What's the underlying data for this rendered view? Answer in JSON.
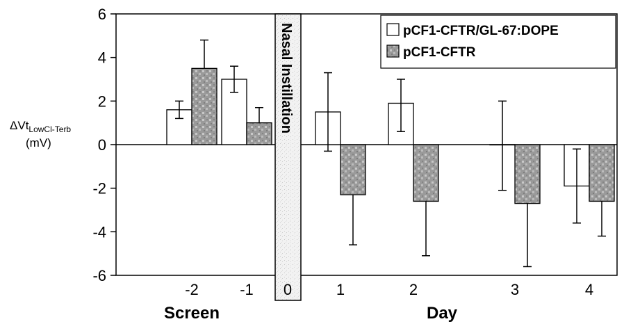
{
  "chart_data": {
    "type": "bar",
    "ylabel_main": "ΔVt",
    "ylabel_sub": "LowCl-Terb",
    "ylabel_unit": "(mV)",
    "ylim": [
      -6,
      6
    ],
    "yticks": [
      "6",
      "4",
      "2",
      "0",
      "-2",
      "-4",
      "-6"
    ],
    "categories": [
      "-2",
      "-1",
      "0",
      "1",
      "2",
      "3",
      "4"
    ],
    "group_labels": {
      "screen": "Screen",
      "day": "Day"
    },
    "annotation": "Nasal Instillation",
    "series": [
      {
        "name": "pCF1-CFTR/GL-67:DOPE",
        "color": "#ffffff",
        "values": [
          1.6,
          3.0,
          null,
          1.5,
          1.9,
          0.0,
          -1.9
        ],
        "err_hi": [
          2.0,
          3.6,
          null,
          3.3,
          3.0,
          2.0,
          -0.2
        ],
        "err_lo": [
          1.2,
          2.4,
          null,
          -0.3,
          0.6,
          -2.1,
          -3.6
        ]
      },
      {
        "name": "pCF1-CFTR",
        "color": "#9a9a9a",
        "values": [
          3.5,
          1.0,
          null,
          -2.3,
          -2.6,
          -2.7,
          -2.6
        ],
        "err_hi": [
          4.8,
          1.7,
          null,
          -2.3,
          -2.6,
          -2.7,
          -2.6
        ],
        "err_lo": [
          3.5,
          1.0,
          null,
          -4.6,
          -5.1,
          -5.6,
          -4.2
        ]
      }
    ],
    "legend_position": "top-right",
    "grid": false
  }
}
